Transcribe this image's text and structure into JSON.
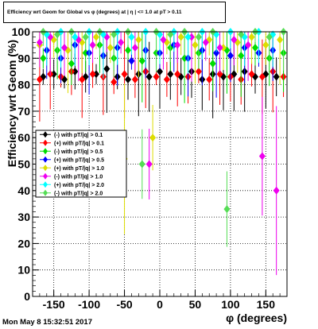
{
  "title": "Efficiency wrt Geom for Global vs φ (degrees) at | η | <= 1.0 at pT > 0.11",
  "timestamp": "Mon May  8 15:32:51 2017",
  "chart_data": {
    "type": "scatter",
    "xlabel": "φ (degrees)",
    "ylabel": "Efficiency wrt Geom (%)",
    "xlim": [
      -180,
      180
    ],
    "ylim": [
      0,
      100
    ],
    "xticks": [
      -150,
      -100,
      -50,
      0,
      50,
      100,
      150
    ],
    "yticks": [
      0,
      10,
      20,
      30,
      40,
      50,
      60,
      70,
      80,
      90,
      100
    ],
    "grid": true,
    "legend_position": "middle-left",
    "series": [
      {
        "name": "(-) with pT/|q| > 0.1",
        "color": "#000000",
        "marker": "diamond",
        "x": [
          -165,
          -150,
          -135,
          -120,
          -105,
          -90,
          -75,
          -60,
          -45,
          -30,
          -15,
          0,
          15,
          30,
          45,
          60,
          75,
          90,
          105,
          120,
          135,
          150,
          165
        ],
        "y": [
          83,
          84,
          82,
          85,
          83,
          84,
          86,
          83,
          82,
          84,
          83,
          85,
          84,
          83,
          85,
          82,
          84,
          83,
          84,
          85,
          83,
          84,
          83
        ]
      },
      {
        "name": "(+) with pT/|q| > 0.1",
        "color": "#ff0000",
        "marker": "diamond",
        "x": [
          -170,
          -155,
          -140,
          -125,
          -110,
          -95,
          -80,
          -65,
          -50,
          -35,
          -20,
          -5,
          10,
          25,
          40,
          55,
          70,
          85,
          100,
          115,
          130,
          145,
          160,
          175
        ],
        "y": [
          82,
          84,
          83,
          85,
          82,
          84,
          83,
          81,
          84,
          82,
          85,
          83,
          82,
          84,
          83,
          85,
          82,
          84,
          83,
          82,
          84,
          83,
          85,
          83
        ]
      },
      {
        "name": "(-) with pT/|q| > 0.5",
        "color": "#00dd00",
        "marker": "diamond",
        "x": [
          -165,
          -145,
          -125,
          -105,
          -85,
          -65,
          -45,
          -25,
          -5,
          15,
          35,
          55,
          75,
          95,
          115,
          135,
          155,
          175
        ],
        "y": [
          90,
          93,
          88,
          92,
          95,
          90,
          93,
          89,
          92,
          94,
          90,
          92,
          88,
          93,
          91,
          94,
          90,
          92
        ]
      },
      {
        "name": "(+) with pT/|q| > 0.5",
        "color": "#0000ff",
        "marker": "diamond",
        "x": [
          -160,
          -140,
          -120,
          -100,
          -80,
          -60,
          -40,
          -20,
          0,
          20,
          40,
          60,
          80,
          100,
          120,
          140,
          160
        ],
        "y": [
          93,
          90,
          95,
          92,
          91,
          94,
          89,
          93,
          92,
          95,
          90,
          93,
          92,
          91,
          94,
          92,
          93
        ]
      },
      {
        "name": "(+) with pT/|q| > 1.0",
        "color": "#dddd00",
        "marker": "diamond",
        "x": [
          -170,
          -150,
          -130,
          -110,
          -90,
          -70,
          -50,
          -30,
          -10,
          10,
          30,
          50,
          70,
          90,
          110,
          130,
          150,
          170
        ],
        "y": [
          95,
          97,
          93,
          96,
          98,
          94,
          52,
          97,
          60,
          96,
          98,
          95,
          97,
          94,
          96,
          98,
          95,
          97
        ]
      },
      {
        "name": "(-) with pT/|q| > 1.0",
        "color": "#ee00ee",
        "marker": "diamond",
        "x": [
          -170,
          -155,
          -135,
          -115,
          -95,
          -75,
          -55,
          -35,
          -15,
          5,
          25,
          45,
          65,
          85,
          105,
          125,
          145,
          165
        ],
        "y": [
          96,
          98,
          94,
          97,
          95,
          98,
          96,
          94,
          50,
          97,
          95,
          98,
          96,
          94,
          97,
          95,
          53,
          40
        ]
      },
      {
        "name": "(+) with pT/|q| > 2.0",
        "color": "#00ffff",
        "marker": "diamond",
        "x": [
          -160,
          -140,
          -120,
          -100,
          -80,
          -60,
          -40,
          -20,
          0,
          20,
          40,
          60,
          80,
          100,
          120,
          140,
          160
        ],
        "y": [
          99,
          100,
          98,
          100,
          99,
          100,
          98,
          100,
          99,
          100,
          98,
          100,
          99,
          100,
          98,
          100,
          99
        ]
      },
      {
        "name": "(-) with pT/|q| > 2.0",
        "color": "#55dd55",
        "marker": "diamond",
        "x": [
          -165,
          -145,
          -125,
          -105,
          -85,
          -65,
          -45,
          -25,
          -5,
          15,
          35,
          55,
          75,
          95,
          115,
          135,
          155,
          175
        ],
        "y": [
          100,
          99,
          100,
          98,
          100,
          99,
          100,
          50,
          100,
          99,
          100,
          98,
          100,
          33,
          99,
          100,
          98,
          100
        ]
      }
    ]
  }
}
